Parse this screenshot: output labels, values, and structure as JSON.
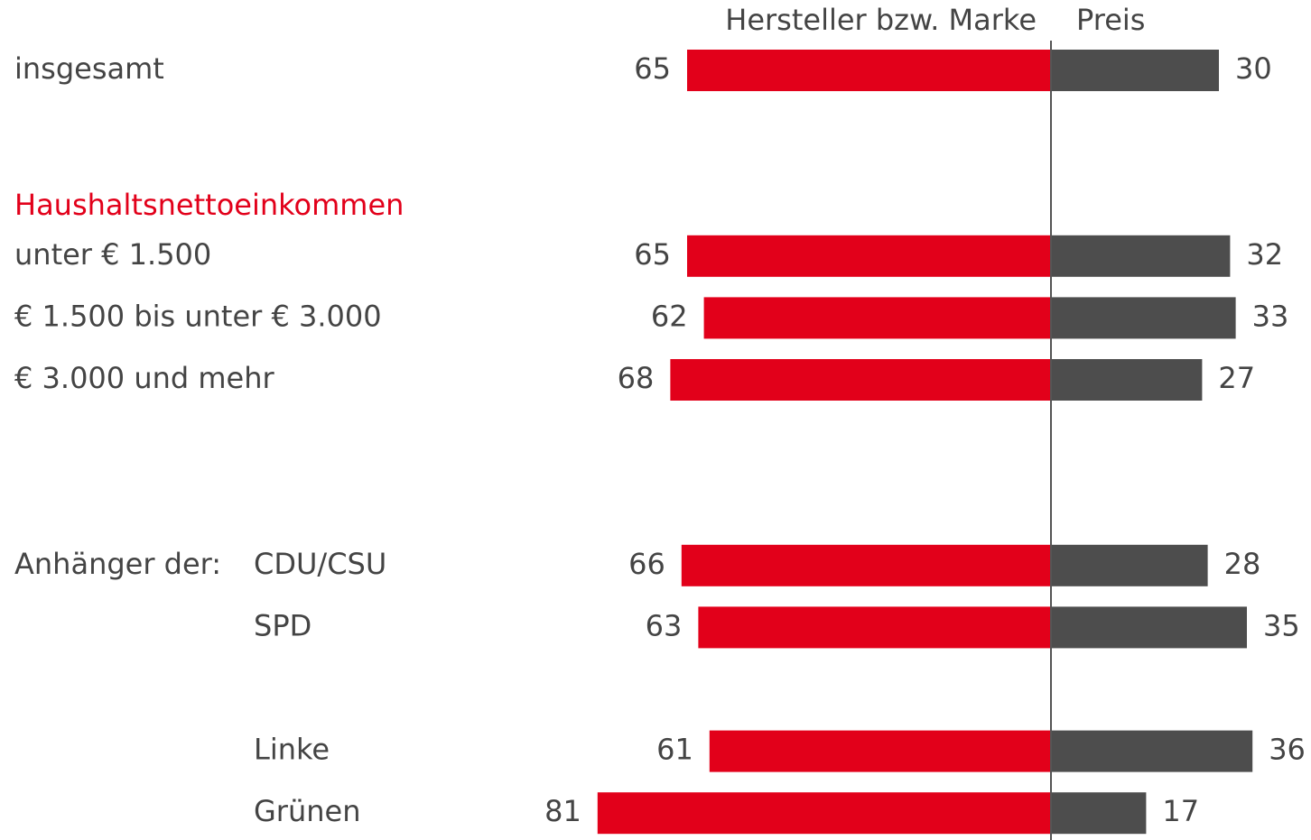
{
  "chart_data": {
    "type": "bar",
    "categories": [
      "insgesamt",
      "unter € 1.500",
      "€ 1.500 bis unter € 3.000",
      "€ 3.000 und mehr",
      "CDU/CSU",
      "SPD",
      "Linke",
      "Grünen"
    ],
    "groups": [
      {
        "label": "Haushaltsnettoeinkommen",
        "color": "#e2001a"
      },
      {
        "label": "Anhänger der:",
        "color": "#444444"
      }
    ],
    "series": [
      {
        "name": "Hersteller bzw. Marke",
        "color": "#e2001a",
        "values": [
          65,
          65,
          62,
          68,
          66,
          63,
          61,
          81
        ]
      },
      {
        "name": "Preis",
        "color": "#4d4d4d",
        "values": [
          30,
          32,
          33,
          27,
          28,
          35,
          36,
          17
        ]
      }
    ]
  }
}
